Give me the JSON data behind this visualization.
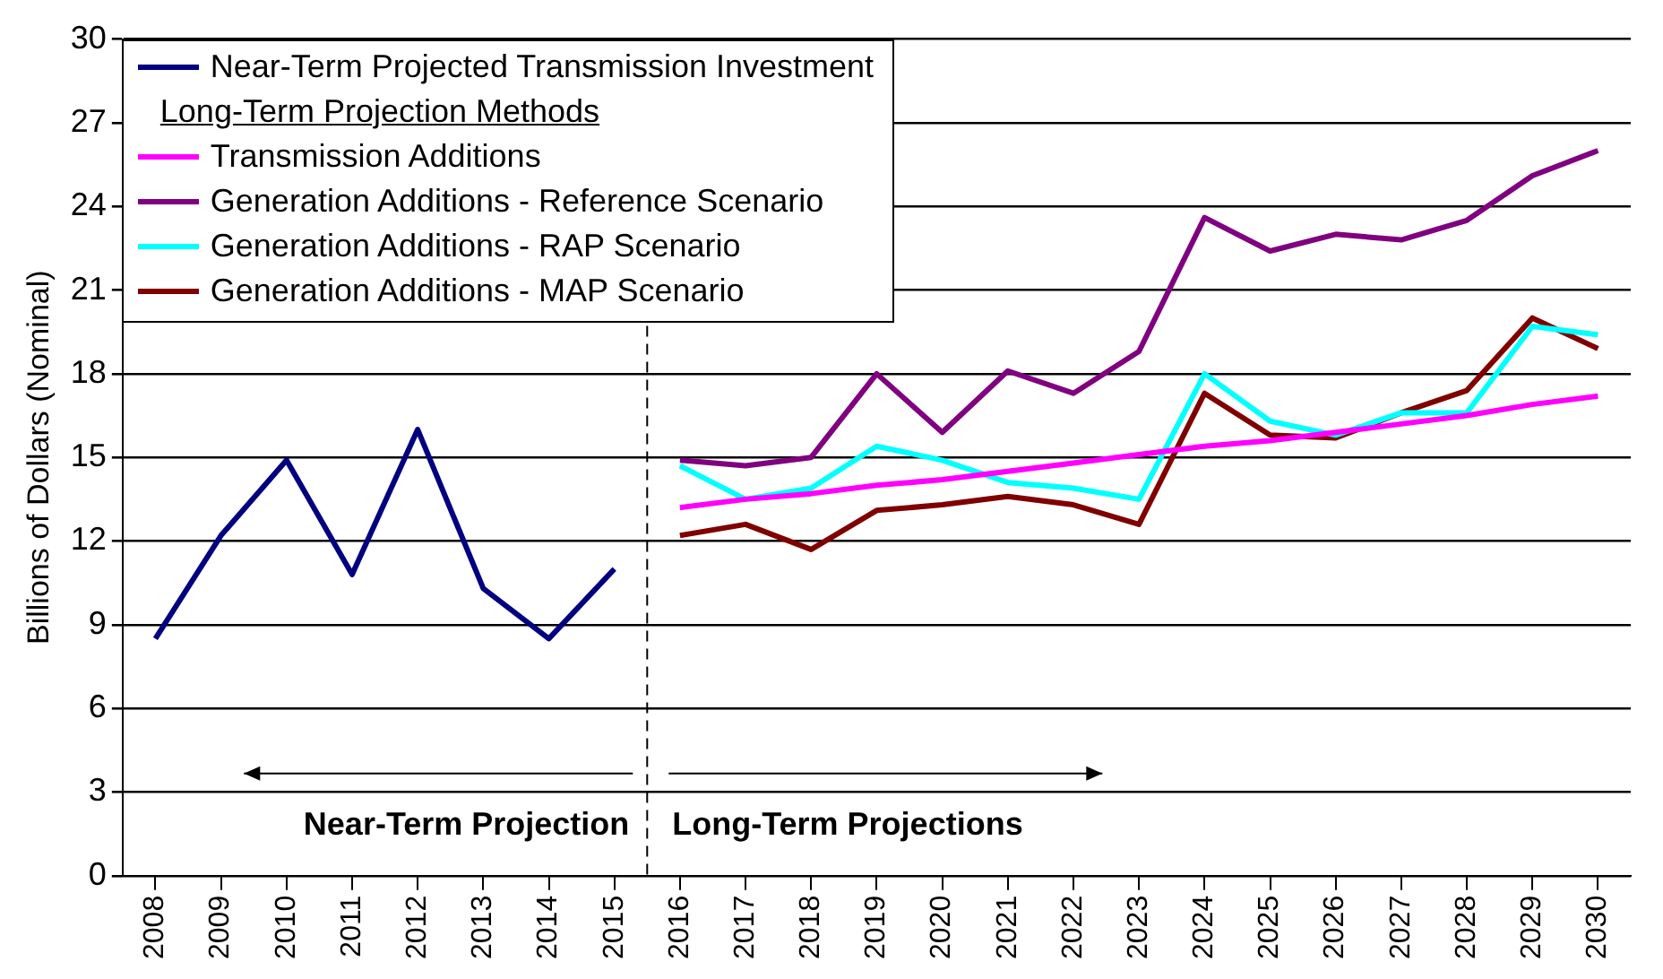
{
  "chart_data": {
    "type": "line",
    "ylabel": "Billions of Dollars (Nominal)",
    "x": [
      2008,
      2009,
      2010,
      2011,
      2012,
      2013,
      2014,
      2015,
      2016,
      2017,
      2018,
      2019,
      2020,
      2021,
      2022,
      2023,
      2024,
      2025,
      2026,
      2027,
      2028,
      2029,
      2030
    ],
    "xlim": [
      2007.5,
      2030.5
    ],
    "xticks": [
      2008,
      2009,
      2010,
      2011,
      2012,
      2013,
      2014,
      2015,
      2016,
      2017,
      2018,
      2019,
      2020,
      2021,
      2022,
      2023,
      2024,
      2025,
      2026,
      2027,
      2028,
      2029,
      2030
    ],
    "ylim": [
      0,
      30
    ],
    "yticks": [
      0,
      3,
      6,
      9,
      12,
      15,
      18,
      21,
      24,
      27,
      30
    ],
    "grid": "y",
    "legend": "top left",
    "legend_title": "Long-Term Projection Methods",
    "marker": "none",
    "line_style": "solid",
    "series": [
      {
        "name": "Near-Term Projected Transmission Investment",
        "color": "#000080",
        "values": [
          8.5,
          12.2,
          14.9,
          10.8,
          16.0,
          10.3,
          8.5,
          11.0,
          null,
          null,
          null,
          null,
          null,
          null,
          null,
          null,
          null,
          null,
          null,
          null,
          null,
          null,
          null
        ]
      },
      {
        "name": "Transmission Additions",
        "color": "#ff00ff",
        "values": [
          null,
          null,
          null,
          null,
          null,
          null,
          null,
          null,
          13.2,
          13.5,
          13.7,
          14.0,
          14.2,
          14.5,
          14.8,
          15.1,
          15.4,
          15.6,
          15.9,
          16.2,
          16.5,
          16.9,
          17.2
        ]
      },
      {
        "name": "Generation Additions - Reference Scenario",
        "color": "#800080",
        "values": [
          null,
          null,
          null,
          null,
          null,
          null,
          null,
          null,
          14.9,
          14.7,
          15.0,
          18.0,
          15.9,
          18.1,
          17.3,
          18.8,
          23.6,
          22.4,
          23.0,
          22.8,
          23.5,
          25.1,
          26.0
        ]
      },
      {
        "name": "Generation Additions - RAP Scenario",
        "color": "#00ffff",
        "values": [
          null,
          null,
          null,
          null,
          null,
          null,
          null,
          null,
          14.7,
          13.5,
          13.9,
          15.4,
          14.9,
          14.1,
          13.9,
          13.5,
          18.0,
          16.3,
          15.8,
          16.6,
          16.6,
          19.7,
          19.4
        ]
      },
      {
        "name": "Generation Additions - MAP Scenario",
        "color": "#800000",
        "values": [
          null,
          null,
          null,
          null,
          null,
          null,
          null,
          null,
          12.2,
          12.6,
          11.7,
          13.1,
          13.3,
          13.6,
          13.3,
          12.6,
          17.3,
          15.8,
          15.7,
          16.6,
          17.4,
          20.0,
          18.9
        ]
      }
    ],
    "ref_lines": [
      {
        "axis": "x",
        "value": 2015.5,
        "color": "#000000",
        "line_style": "dashed"
      }
    ],
    "annotations": [
      "Near-Term Projection",
      "Long-Term Projections"
    ]
  }
}
